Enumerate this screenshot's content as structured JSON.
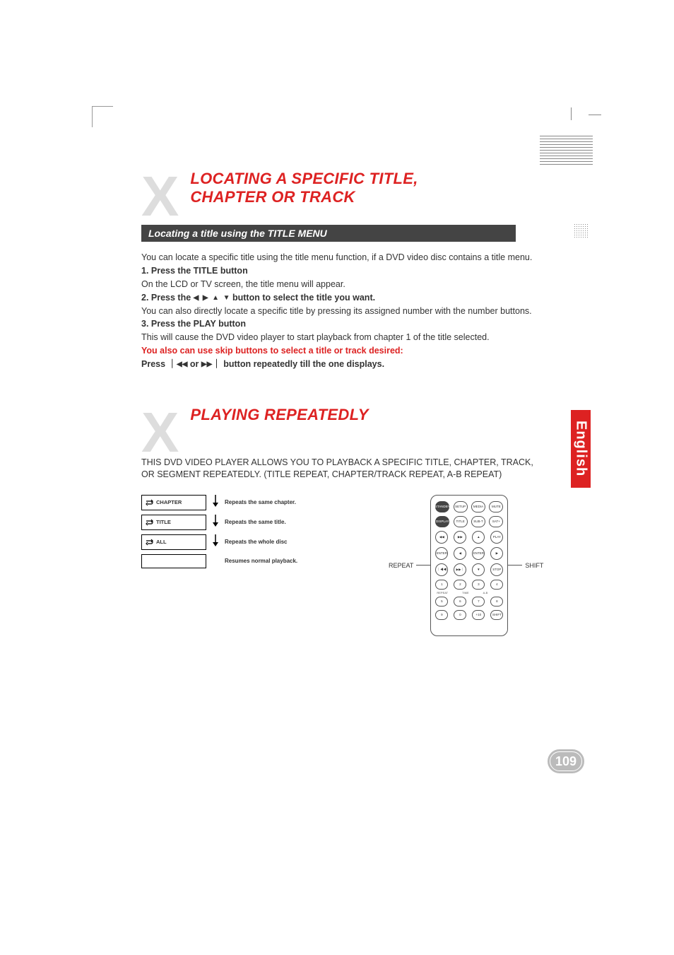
{
  "colors": {
    "accent_red": "#d22",
    "big_x_grey": "#ddd",
    "bar_grey": "#444",
    "text": "#333",
    "badge_grey": "#bbb"
  },
  "section1": {
    "big_x": "X",
    "title_line1": "LOCATING A SPECIFIC TITLE,",
    "title_line2": "CHAPTER OR TRACK",
    "subheader": "Locating a title using the TITLE MENU",
    "p1": "You can locate a specific title using the title menu function, if a DVD video disc contains a title menu.",
    "step1": "1. Press the TITLE button",
    "p2": "On the LCD or TV screen, the title menu will appear.",
    "step2_pre": "2. Press the ",
    "step2_post": " button to select the title you want.",
    "p3": "You can also directly locate a specific title by pressing its assigned number with the number buttons.",
    "step3": "3. Press the PLAY button",
    "p4": "This will cause the DVD video player to start playback from chapter 1 of the title selected.",
    "red_line": "You also can use skip buttons to select a title or track desired:",
    "press_pre": "Press ｜",
    "press_mid": " or ",
    "press_post": "｜ button repeatedly till the one displays."
  },
  "section2": {
    "big_x": "X",
    "title": "PLAYING REPEATEDLY",
    "intro": "THIS DVD VIDEO PLAYER ALLOWS YOU TO PLAYBACK A SPECIFIC TITLE, CHAPTER, TRACK, OR SEGMENT REPEATEDLY. (TITLE REPEAT, CHAPTER/TRACK REPEAT, A-B REPEAT)",
    "repeat_items": [
      {
        "label": "CHAPTER",
        "desc": "Repeats the same chapter."
      },
      {
        "label": "TITLE",
        "desc": "Repeats the same title."
      },
      {
        "label": "ALL",
        "desc": "Repeats the whole disc"
      },
      {
        "label": "",
        "desc": "Resumes normal playback."
      }
    ]
  },
  "remote": {
    "left_label": "REPEAT",
    "right_label": "SHIFT",
    "rows": [
      [
        "STANDBY",
        "SETUP",
        "MEDIA",
        "MUTE"
      ],
      [
        "DISPLAY",
        "TITLE",
        "SUB-T",
        "SAT+"
      ],
      [
        "◀◀",
        "▶▶",
        "▲",
        "PLAY"
      ],
      [
        "ENTER",
        "◀",
        "ENTER",
        "▶"
      ],
      [
        "｜◀◀",
        "▶▶｜",
        "▼",
        "STOP"
      ],
      [
        "1",
        "2",
        "3",
        "4"
      ],
      [
        "5",
        "6",
        "7",
        "8"
      ],
      [
        "9",
        "0",
        "+10",
        "SHIFT"
      ]
    ],
    "sublabels": [
      "REPEAT",
      "TIME",
      "A-B",
      ""
    ]
  },
  "language_tab": "English",
  "page_number": "109"
}
